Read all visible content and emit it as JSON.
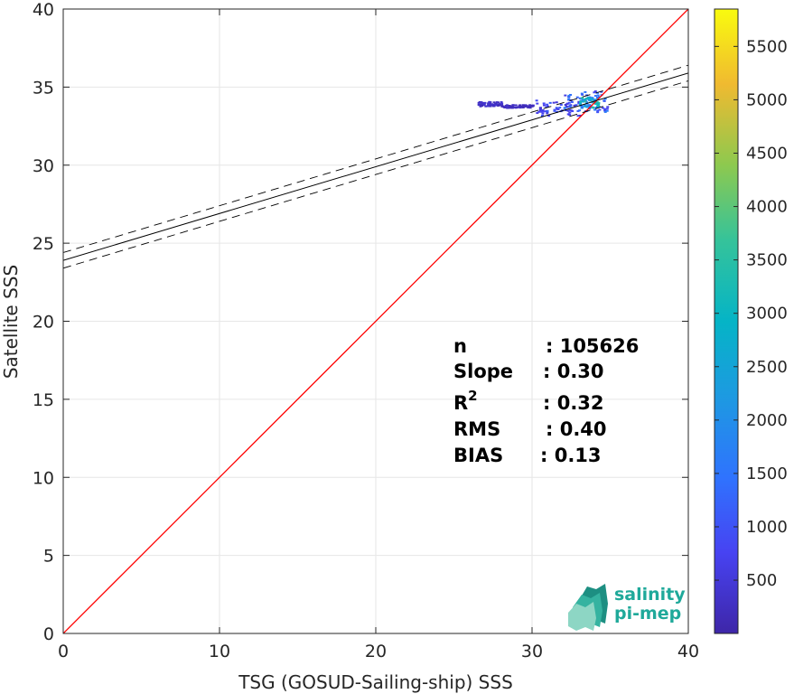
{
  "chart_data": {
    "type": "scatter",
    "subtype": "2d-density-histogram",
    "title": "",
    "xlabel": "TSG (GOSUD-Sailing-ship) SSS",
    "ylabel": "Satellite SSS",
    "xlim": [
      0,
      40
    ],
    "ylim": [
      0,
      40
    ],
    "xticks": [
      "0",
      "10",
      "20",
      "30",
      "40"
    ],
    "yticks": [
      "0",
      "5",
      "10",
      "15",
      "20",
      "25",
      "30",
      "35",
      "40"
    ],
    "grid": true,
    "identity_line": {
      "color": "#ff0000",
      "points": [
        [
          0,
          0
        ],
        [
          40,
          40
        ]
      ]
    },
    "regression": {
      "slope": 0.3,
      "intercept": 23.9,
      "band_offset": 0.5,
      "color": "#000000"
    },
    "density_clusters": [
      {
        "x": [
          26.5,
          28.0
        ],
        "y": [
          33.7,
          34.0
        ],
        "level": 300
      },
      {
        "x": [
          28.0,
          30.0
        ],
        "y": [
          33.6,
          33.8
        ],
        "level": 250
      },
      {
        "x": [
          30.2,
          33.0
        ],
        "y": [
          33.1,
          34.1
        ],
        "level": 800
      },
      {
        "x": [
          32.0,
          34.8
        ],
        "y": [
          33.3,
          34.7
        ],
        "level": 1200
      },
      {
        "x": [
          33.0,
          34.2
        ],
        "y": [
          33.6,
          34.3
        ],
        "level": 2500
      }
    ],
    "colorbar": {
      "min": 1,
      "max": 5850,
      "ticks": [
        "500",
        "1000",
        "1500",
        "2000",
        "2500",
        "3000",
        "3500",
        "4000",
        "4500",
        "5000",
        "5500"
      ],
      "colormap": "parula"
    },
    "annotations": {
      "rows": [
        {
          "label": "n",
          "value": ": 105626"
        },
        {
          "label": "Slope",
          "value": ": 0.30"
        },
        {
          "label": "R",
          "sup": "2",
          "value": ": 0.32"
        },
        {
          "label": "RMS",
          "value": ": 0.40"
        },
        {
          "label": "BIAS",
          "value": ": 0.13"
        }
      ]
    }
  },
  "logo": {
    "line1": "salinity",
    "line2": "pi-mep",
    "color": "#1fa99a"
  }
}
